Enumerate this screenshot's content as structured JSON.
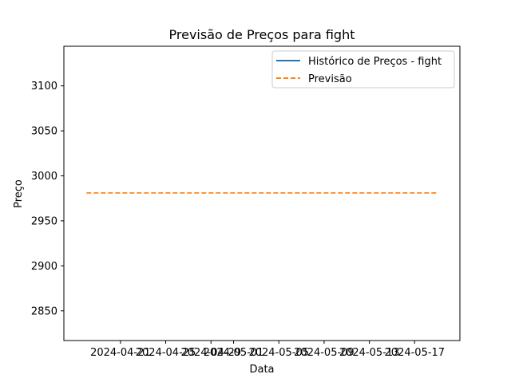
{
  "chart_data": {
    "type": "line",
    "title": "Previsão de Preços para fight",
    "xlabel": "Data",
    "ylabel": "Preço",
    "x_ticks": [
      "2024-04-21",
      "2024-04-25",
      "2024-04-29",
      "2024-05-01",
      "2024-05-05",
      "2024-05-09",
      "2024-05-13",
      "2024-05-17"
    ],
    "y_ticks": [
      2850,
      2900,
      2950,
      3000,
      3050,
      3100
    ],
    "ylim": [
      2817,
      3144
    ],
    "xlim": [
      "2024-04-16",
      "2024-05-21"
    ],
    "grid": false,
    "legend_position": "top-right",
    "series": [
      {
        "name": "Histórico de Preços - fight",
        "color": "#1f77b4",
        "style": "solid",
        "points": []
      },
      {
        "name": "Previsão",
        "color": "#ff7f0e",
        "style": "dashed",
        "points": [
          {
            "x": "2024-04-18",
            "y": 2981
          },
          {
            "x": "2024-05-19",
            "y": 2981
          }
        ]
      }
    ]
  }
}
